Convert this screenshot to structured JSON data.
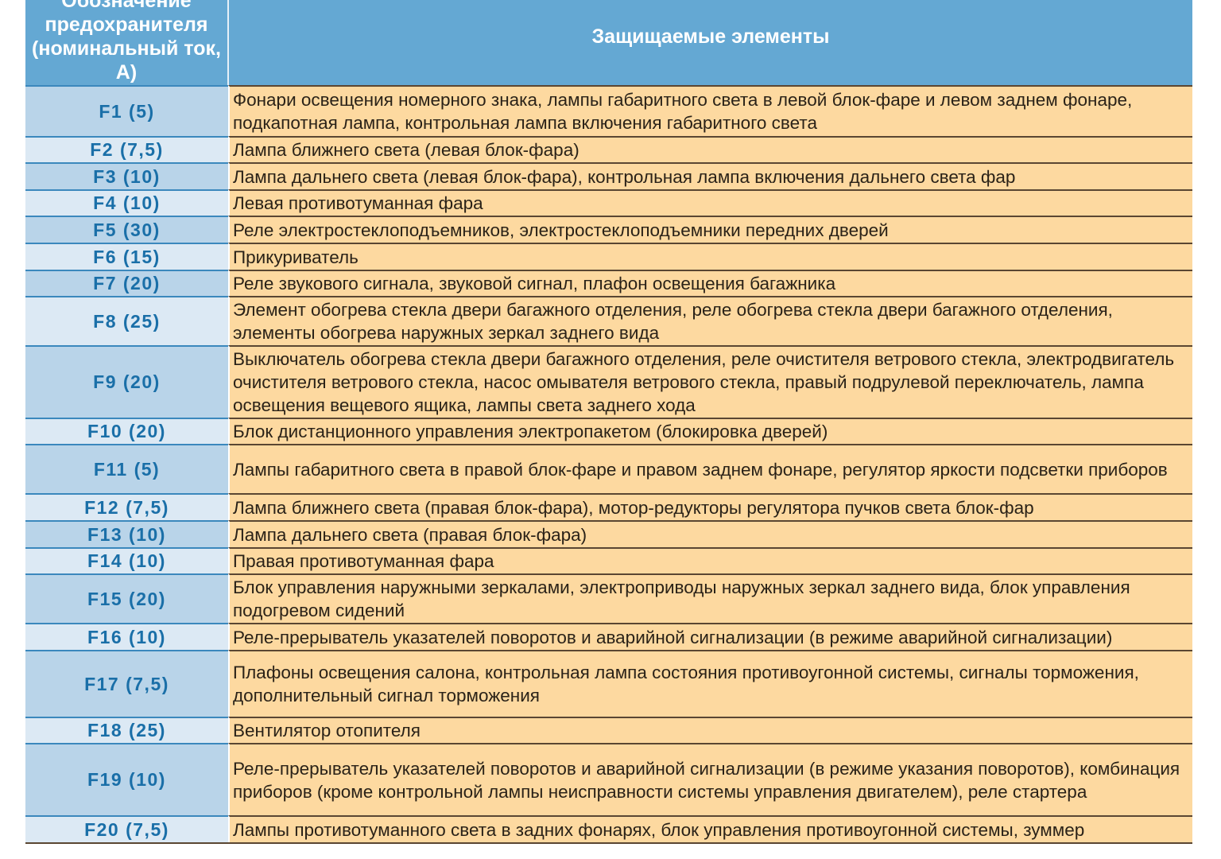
{
  "header": {
    "col1": "Обозначение предохранителя (номинальный ток, А)",
    "col2": "Защищаемые элементы"
  },
  "rows": [
    {
      "fuse": "F1 (5)",
      "elements": "Фонари освещения номерного знака, лампы габаритного света в левой блок-фаре и левом заднем фонаре, подкапотная лампа, контрольная лампа включения габаритного света"
    },
    {
      "fuse": "F2 (7,5)",
      "elements": "Лампа ближнего света (левая блок-фара)"
    },
    {
      "fuse": "F3 (10)",
      "elements": "Лампа дальнего света (левая блок-фара), контрольная лампа включения дальнего света фар"
    },
    {
      "fuse": "F4 (10)",
      "elements": "Левая противотуманная фара"
    },
    {
      "fuse": "F5 (30)",
      "elements": "Реле электростеклоподъемников, электростеклоподъемники передних дверей"
    },
    {
      "fuse": "F6 (15)",
      "elements": "Прикуриватель"
    },
    {
      "fuse": "F7 (20)",
      "elements": "Реле звукового сигнала, звуковой сигнал, плафон освещения багажника"
    },
    {
      "fuse": "F8 (25)",
      "elements": "Элемент обогрева стекла двери багажного отделения, реле обогрева стекла двери багажного отделения, элементы обогрева наружных зеркал заднего вида"
    },
    {
      "fuse": "F9 (20)",
      "elements": "Выключатель обогрева стекла двери багажного отделения, реле очистителя ветрового стекла, электродвигатель очистителя ветрового стекла, насос омывателя ветрового стекла, правый подрулевой переключатель, лампа освещения вещевого ящика, лампы света заднего хода"
    },
    {
      "fuse": "F10 (20)",
      "elements": "Блок дистанционного управления электропакетом (блокировка дверей)"
    },
    {
      "fuse": "F11 (5)",
      "elements": "Лампы габаритного света в правой блок-фаре и правом заднем фонаре, регулятор яркости подсветки приборов"
    },
    {
      "fuse": "F12 (7,5)",
      "elements": "Лампа ближнего света (правая блок-фара), мотор-редукторы регулятора пучков света блок-фар"
    },
    {
      "fuse": "F13 (10)",
      "elements": "Лампа дальнего света (правая блок-фара)"
    },
    {
      "fuse": "F14 (10)",
      "elements": "Правая противотуманная фара"
    },
    {
      "fuse": "F15 (20)",
      "elements": "Блок управления наружными зеркалами, электроприводы наружных зеркал заднего вида, блок управления подогревом сидений"
    },
    {
      "fuse": "F16 (10)",
      "elements": "Реле-прерыватель указателей поворотов и аварийной сигнализации (в режиме аварийной сигнализации)"
    },
    {
      "fuse": "F17 (7,5)",
      "elements": "Плафоны освещения салона, контрольная лампа состояния противоугонной системы, сигналы торможения, дополнительный сигнал торможения"
    },
    {
      "fuse": "F18 (25)",
      "elements": "Вентилятор отопителя"
    },
    {
      "fuse": "F19 (10)",
      "elements": "Реле-прерыватель указателей поворотов и аварийной сигнализации (в режиме указания поворотов), комбинация приборов (кроме контрольной лампы неисправности системы управления двигателем), реле стартера"
    },
    {
      "fuse": "F20 (7,5)",
      "elements": "Лампы противотуманного света в задних фонарях, блок управления противоугонной системы, зуммер"
    }
  ]
}
